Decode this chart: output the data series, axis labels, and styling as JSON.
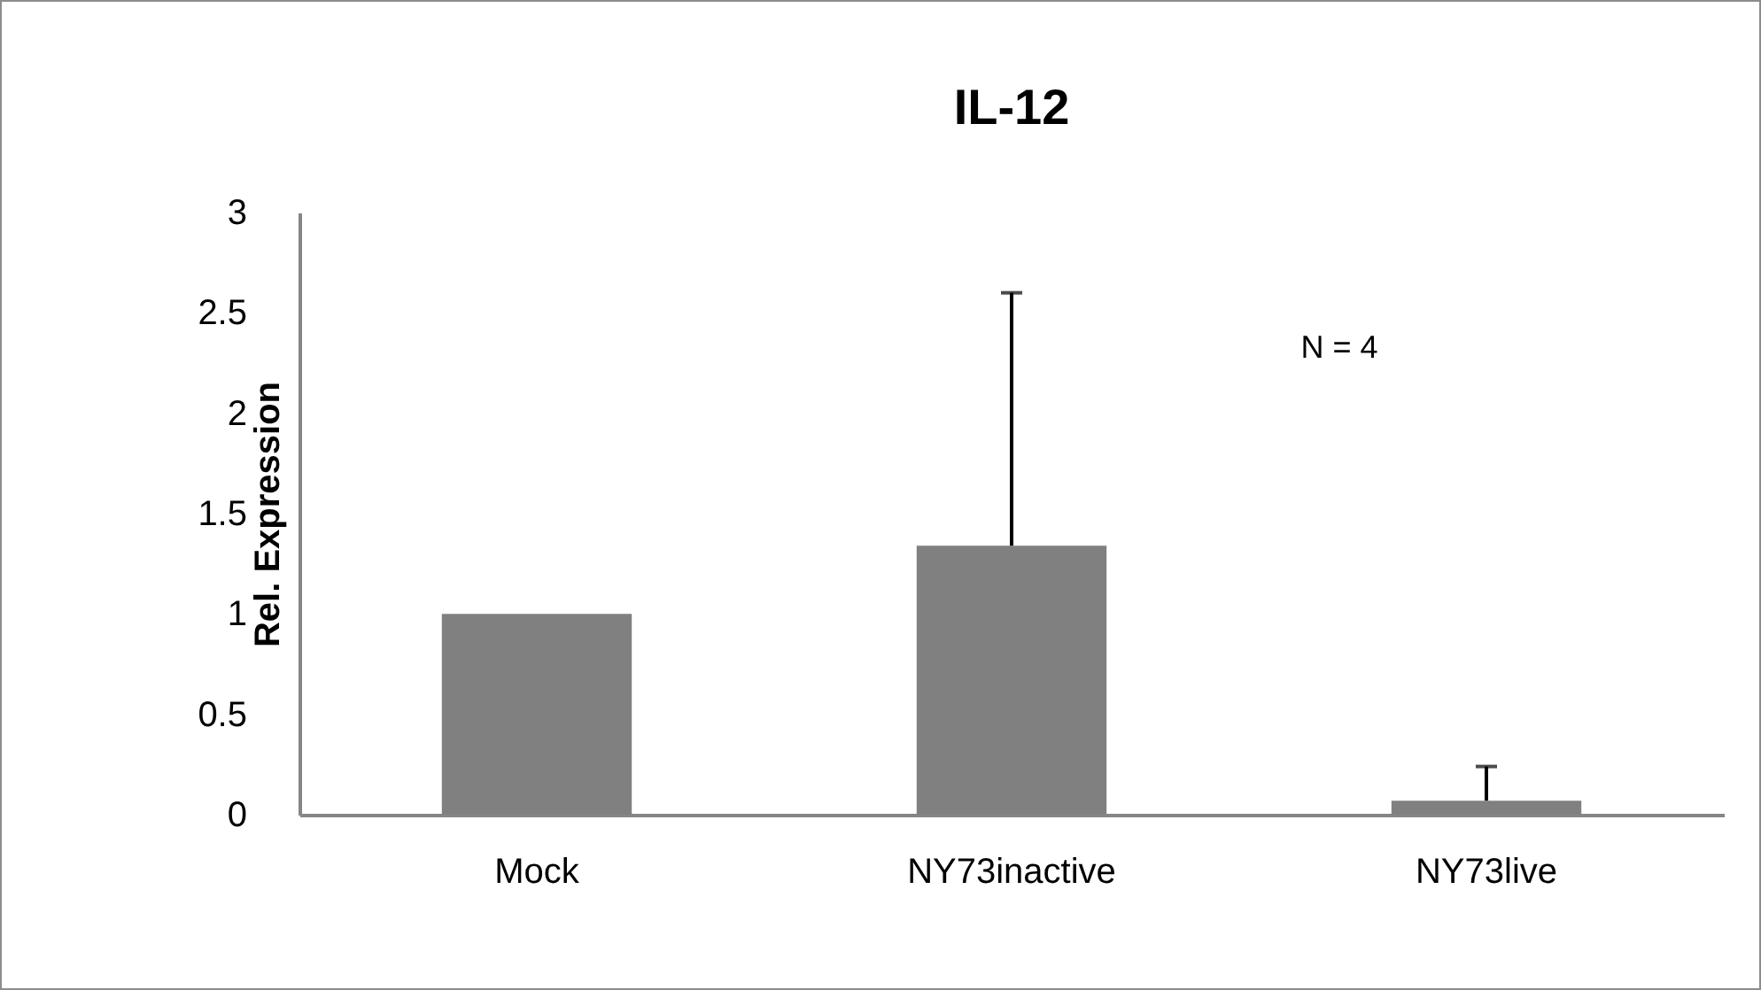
{
  "chart_data": {
    "type": "bar",
    "title": "IL-12",
    "ylabel": "Rel. Expression",
    "categories": [
      "Mock",
      "NY73inactive",
      "NY73live"
    ],
    "values": [
      1.0,
      1.34,
      0.07
    ],
    "errors": [
      null,
      [
        1.34,
        2.6
      ],
      [
        0.07,
        0.24
      ]
    ],
    "color": "#808080",
    "ylim": [
      0,
      3
    ],
    "yticks": [
      0,
      0.5,
      1,
      1.5,
      2,
      2.5,
      3
    ],
    "annotations": [
      "N = 4"
    ]
  }
}
